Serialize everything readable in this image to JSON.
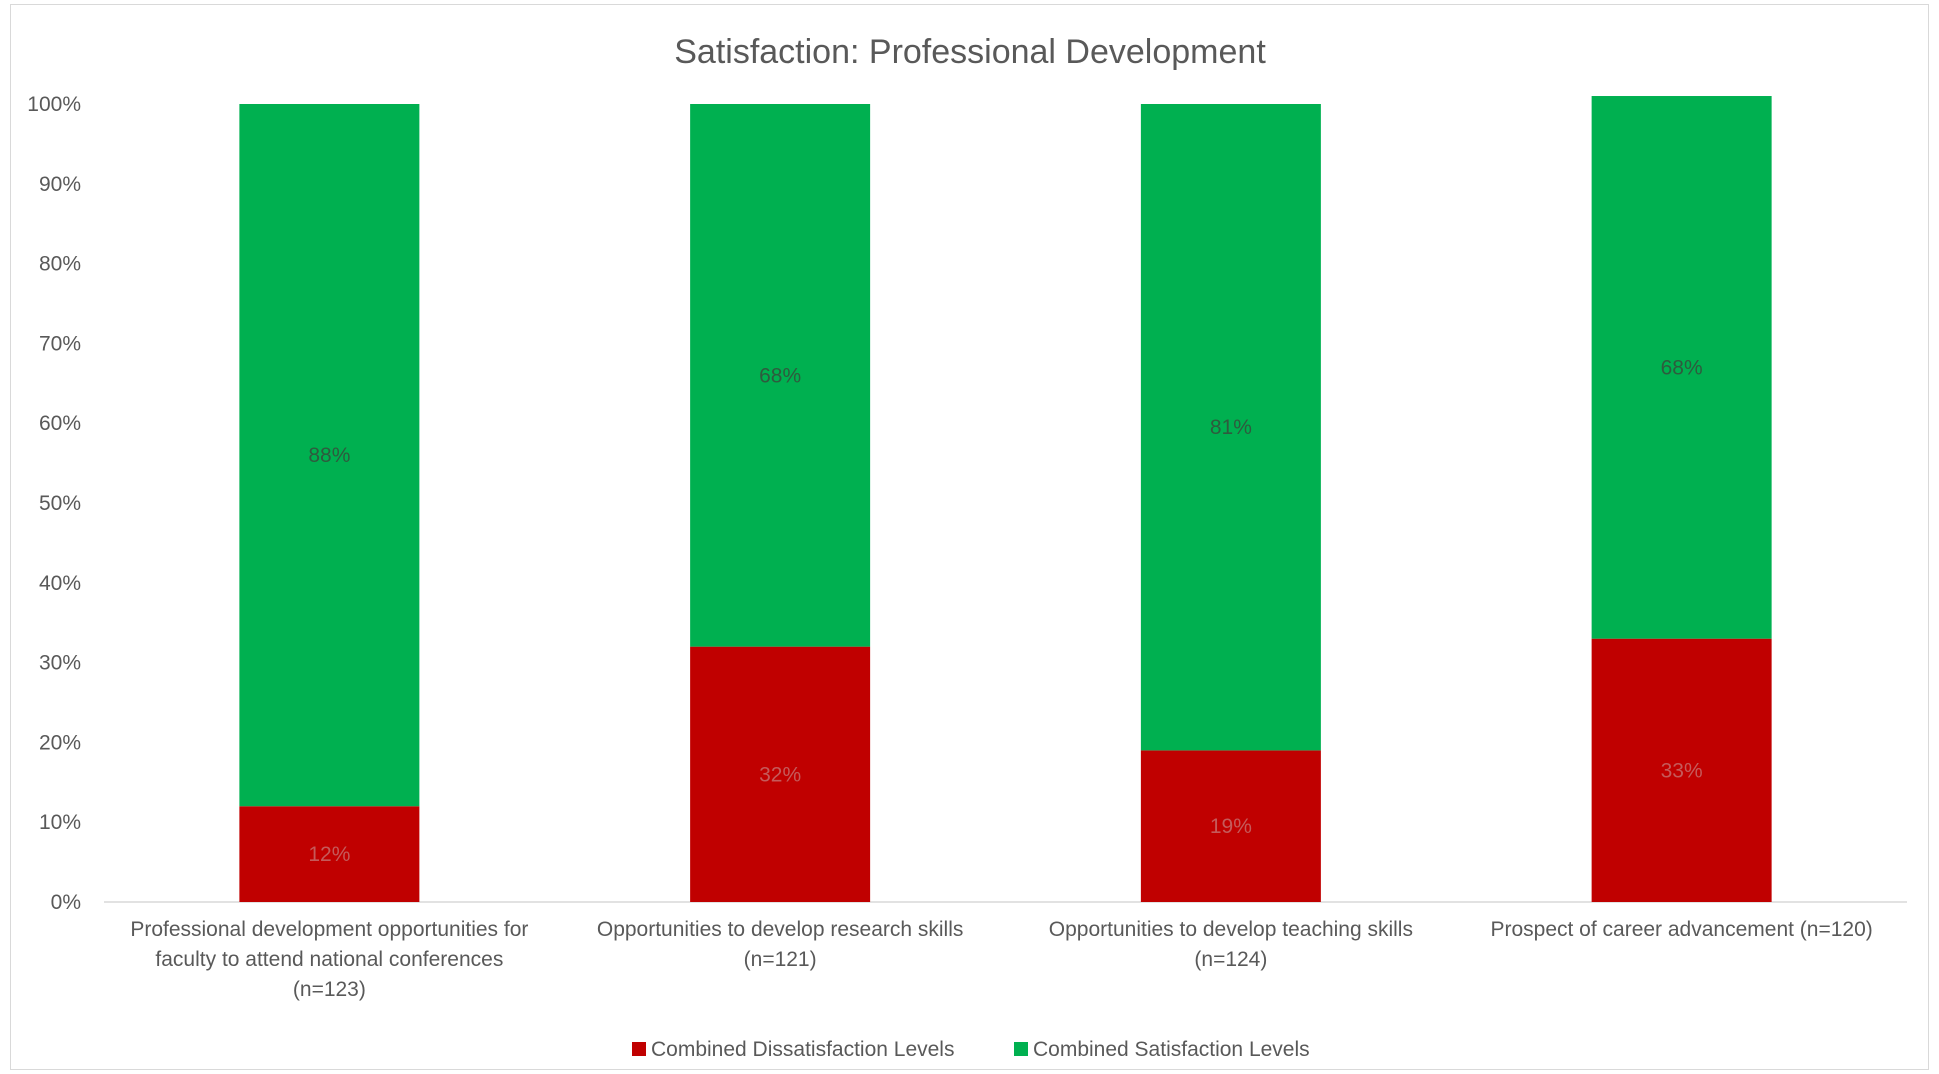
{
  "chart_data": {
    "type": "bar",
    "stacked": true,
    "percent_stacked": true,
    "title": "Satisfaction: Professional Development",
    "xlabel": "",
    "ylabel": "",
    "ylim": [
      0,
      100
    ],
    "y_ticks": [
      "0%",
      "10%",
      "20%",
      "30%",
      "40%",
      "50%",
      "60%",
      "70%",
      "80%",
      "90%",
      "100%"
    ],
    "categories": [
      [
        "Professional development opportunities for",
        "faculty to attend national conferences",
        "(n=123)"
      ],
      [
        "Opportunities to develop research skills",
        "(n=121)"
      ],
      [
        "Opportunities to develop teaching skills",
        "(n=124)"
      ],
      [
        "Prospect of career advancement (n=120)"
      ]
    ],
    "series": [
      {
        "name": "Combined Dissatisfaction Levels",
        "color": "#c00000",
        "label_color": "#c55a5a",
        "values": [
          12,
          32,
          19,
          33
        ],
        "labels": [
          "12%",
          "32%",
          "19%",
          "33%"
        ]
      },
      {
        "name": "Combined Satisfaction Levels",
        "color": "#00b050",
        "label_color": "#2e5b3e",
        "values": [
          88,
          68,
          81,
          68
        ],
        "labels": [
          "88%",
          "68%",
          "81%",
          "68%"
        ]
      }
    ],
    "grid": false,
    "legend_position": "bottom"
  }
}
